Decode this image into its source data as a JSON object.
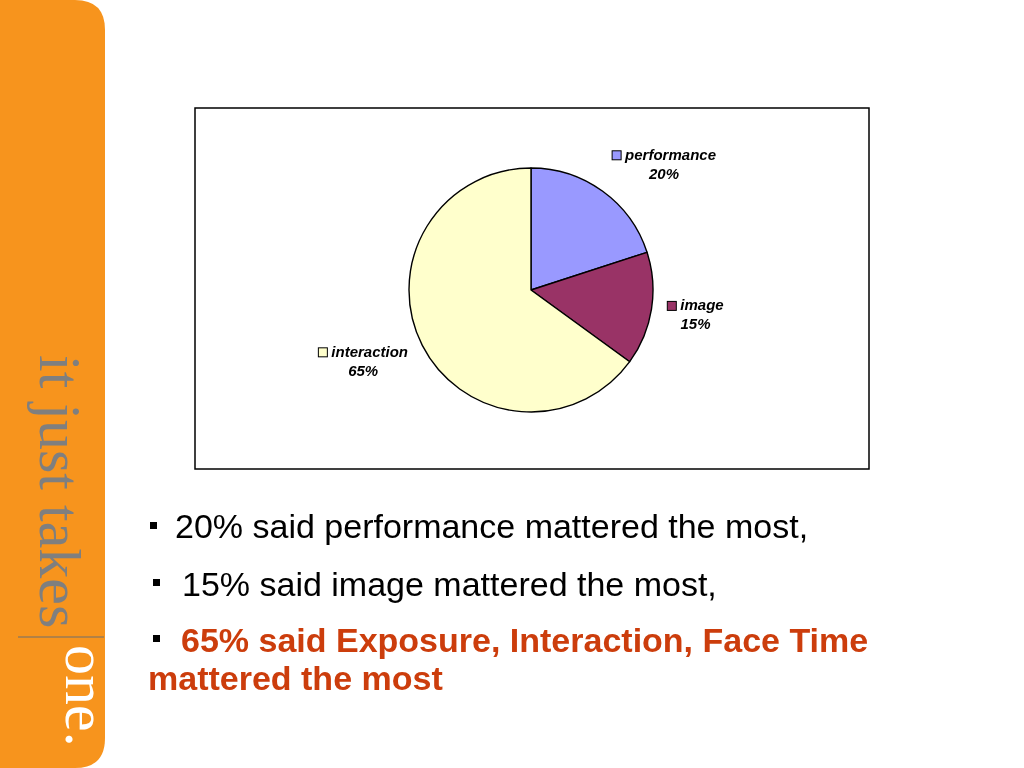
{
  "chart_data": {
    "type": "pie",
    "categories": [
      "performance",
      "image",
      "interaction"
    ],
    "values": [
      20,
      15,
      65
    ],
    "colors": [
      "#9999ff",
      "#993366",
      "#ffffcc"
    ],
    "value_labels": [
      "20%",
      "15%",
      "65%"
    ],
    "legend": "top",
    "annotations": [
      "20% said performance mattered the most,",
      "15% said image mattered the most,",
      "65% said Exposure, Interaction, Face Time mattered the most",
      "it just takes",
      "one."
    ]
  }
}
